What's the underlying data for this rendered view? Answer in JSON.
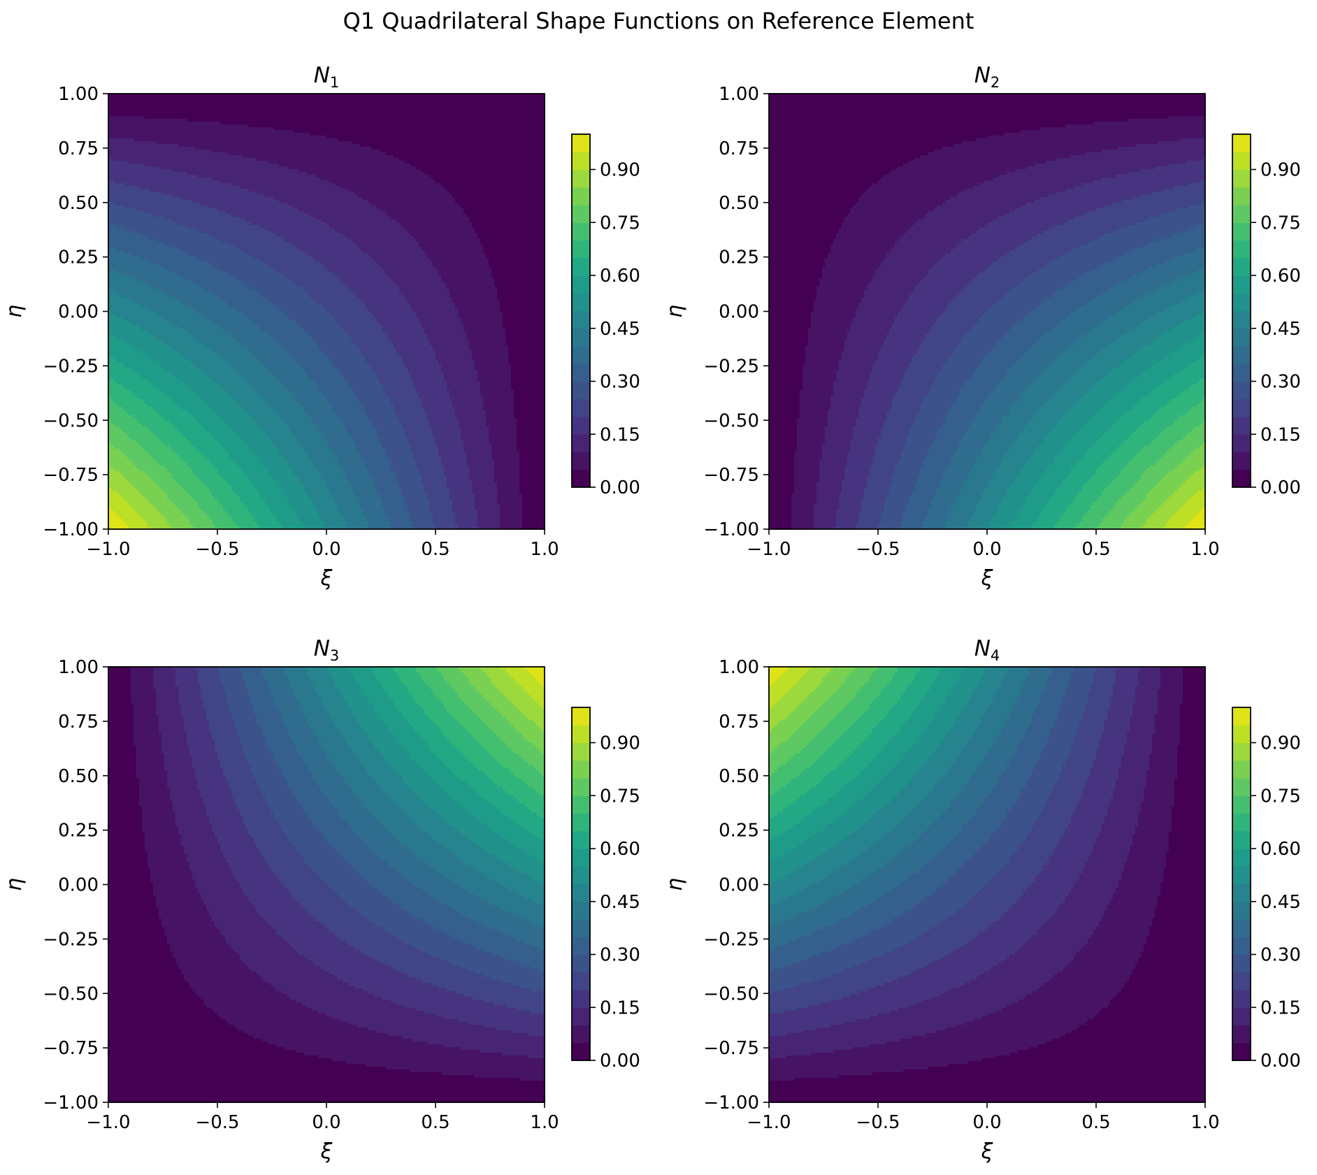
{
  "figure": {
    "title": "Q1 Quadrilateral Shape Functions on Reference Element"
  },
  "chart_data": [
    {
      "type": "contour",
      "title_base": "N",
      "title_sub": "1",
      "xlabel": "ξ",
      "ylabel": "η",
      "xlim": [
        -1.0,
        1.0
      ],
      "ylim": [
        -1.0,
        1.0
      ],
      "xticks": [
        "−1.0",
        "−0.5",
        "0.0",
        "0.5",
        "1.0"
      ],
      "yticks": [
        "−1.00",
        "−0.75",
        "−0.50",
        "−0.25",
        "0.00",
        "0.25",
        "0.50",
        "0.75",
        "1.00"
      ],
      "function": "N1 = (1 − ξ)(1 − η) / 4",
      "node": [
        -1,
        -1
      ],
      "colorbar_ticks": [
        "0.00",
        "0.15",
        "0.30",
        "0.45",
        "0.60",
        "0.75",
        "0.90"
      ]
    },
    {
      "type": "contour",
      "title_base": "N",
      "title_sub": "2",
      "xlabel": "ξ",
      "ylabel": "η",
      "xlim": [
        -1.0,
        1.0
      ],
      "ylim": [
        -1.0,
        1.0
      ],
      "xticks": [
        "−1.0",
        "−0.5",
        "0.0",
        "0.5",
        "1.0"
      ],
      "yticks": [
        "−1.00",
        "−0.75",
        "−0.50",
        "−0.25",
        "0.00",
        "0.25",
        "0.50",
        "0.75",
        "1.00"
      ],
      "function": "N2 = (1 + ξ)(1 − η) / 4",
      "node": [
        1,
        -1
      ],
      "colorbar_ticks": [
        "0.00",
        "0.15",
        "0.30",
        "0.45",
        "0.60",
        "0.75",
        "0.90"
      ]
    },
    {
      "type": "contour",
      "title_base": "N",
      "title_sub": "3",
      "xlabel": "ξ",
      "ylabel": "η",
      "xlim": [
        -1.0,
        1.0
      ],
      "ylim": [
        -1.0,
        1.0
      ],
      "xticks": [
        "−1.0",
        "−0.5",
        "0.0",
        "0.5",
        "1.0"
      ],
      "yticks": [
        "−1.00",
        "−0.75",
        "−0.50",
        "−0.25",
        "0.00",
        "0.25",
        "0.50",
        "0.75",
        "1.00"
      ],
      "function": "N3 = (1 + ξ)(1 + η) / 4",
      "node": [
        1,
        1
      ],
      "colorbar_ticks": [
        "0.00",
        "0.15",
        "0.30",
        "0.45",
        "0.60",
        "0.75",
        "0.90"
      ]
    },
    {
      "type": "contour",
      "title_base": "N",
      "title_sub": "4",
      "xlabel": "ξ",
      "ylabel": "η",
      "xlim": [
        -1.0,
        1.0
      ],
      "ylim": [
        -1.0,
        1.0
      ],
      "xticks": [
        "−1.0",
        "−0.5",
        "0.0",
        "0.5",
        "1.0"
      ],
      "yticks": [
        "−1.00",
        "−0.75",
        "−0.50",
        "−0.25",
        "0.00",
        "0.25",
        "0.50",
        "0.75",
        "1.00"
      ],
      "function": "N4 = (1 − ξ)(1 + η) / 4",
      "node": [
        -1,
        1
      ],
      "colorbar_ticks": [
        "0.00",
        "0.15",
        "0.30",
        "0.45",
        "0.60",
        "0.75",
        "0.90"
      ]
    }
  ],
  "colormap": {
    "name": "viridis",
    "levels": [
      0.0,
      0.05,
      0.1,
      0.15,
      0.2,
      0.25,
      0.3,
      0.35,
      0.4,
      0.45,
      0.5,
      0.55,
      0.6,
      0.65,
      0.7,
      0.75,
      0.8,
      0.85,
      0.9,
      0.95,
      1.0
    ],
    "colorbar_range": [
      0.0,
      1.0
    ],
    "colorbar_tick_values": [
      0.0,
      0.15,
      0.3,
      0.45,
      0.6,
      0.75,
      0.9
    ],
    "colors": [
      "#440154",
      "#471365",
      "#482475",
      "#463480",
      "#414487",
      "#3b528b",
      "#355f8d",
      "#2f6c8e",
      "#2a788e",
      "#25848e",
      "#21918c",
      "#1e9c89",
      "#22a884",
      "#2fb47c",
      "#44bf70",
      "#5ec962",
      "#7ad151",
      "#9bd93c",
      "#bddf26",
      "#dfe318"
    ]
  }
}
